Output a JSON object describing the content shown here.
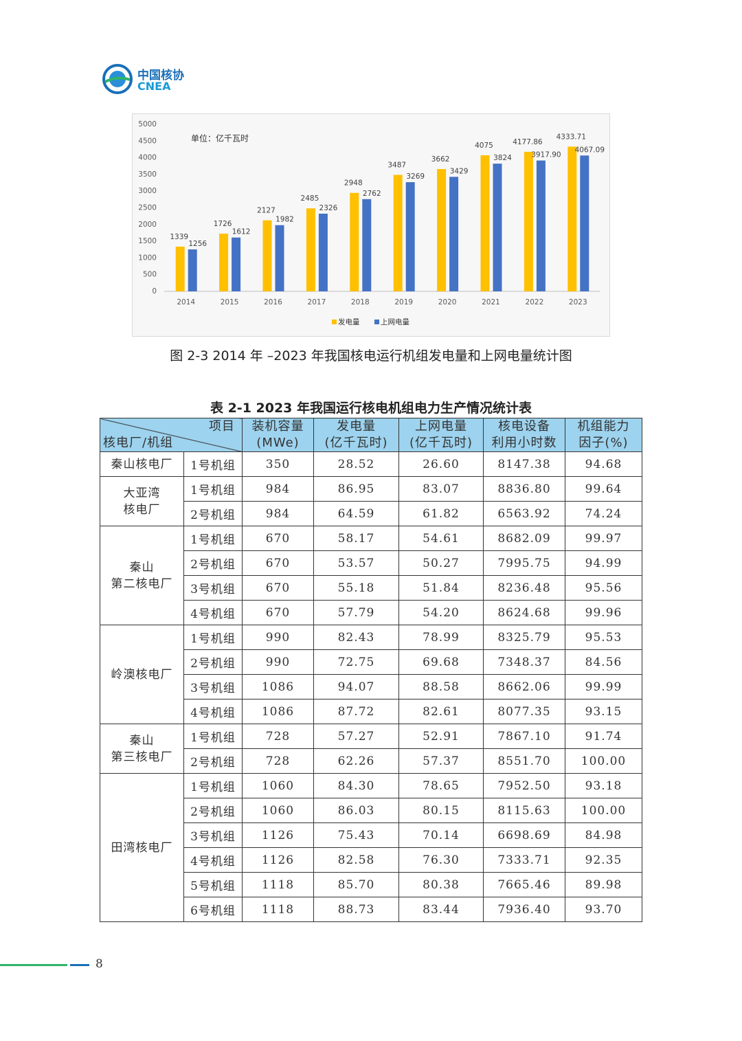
{
  "header": {
    "logo_cn": "中国核协",
    "logo_en": "CNEA"
  },
  "chart_data": {
    "type": "bar",
    "annotation": "单位：亿千瓦时",
    "categories": [
      "2014",
      "2015",
      "2016",
      "2017",
      "2018",
      "2019",
      "2020",
      "2021",
      "2022",
      "2023"
    ],
    "series": [
      {
        "name": "发电量",
        "color": "#FFC000",
        "values": [
          1339,
          1726,
          2127,
          2485,
          2948,
          3487,
          3662,
          4075,
          4177.86,
          4333.71
        ]
      },
      {
        "name": "上网电量",
        "color": "#4472C4",
        "values": [
          1256,
          1612,
          1982,
          2326,
          2762,
          3269,
          3429,
          3824,
          3917.9,
          4067.09
        ],
        "value_labels": [
          "1256",
          "1612",
          "1982",
          "2326",
          "2762",
          "3269",
          "3429",
          "3824",
          "3917.90",
          "4067.09"
        ]
      }
    ],
    "ylim": [
      0,
      5000
    ],
    "yticks": [
      0,
      500,
      1000,
      1500,
      2000,
      2500,
      3000,
      3500,
      4000,
      4500,
      5000
    ],
    "legend": "bottom"
  },
  "figure_caption": "图 2-3  2014 年 –2023 年我国核电运行机组发电量和上网电量统计图",
  "table": {
    "title": "表 2-1  2023 年我国运行核电机组电力生产情况统计表",
    "corner": {
      "top": "项目",
      "bottom": "核电厂/机组"
    },
    "columns": [
      [
        "装机容量",
        "(MWe)"
      ],
      [
        "发电量",
        "(亿千瓦时)"
      ],
      [
        "上网电量",
        "(亿千瓦时)"
      ],
      [
        "核电设备",
        "利用小时数"
      ],
      [
        "机组能力",
        "因子(%)"
      ]
    ],
    "groups": [
      {
        "plant": [
          "秦山核电厂"
        ],
        "units": [
          [
            "1号机组",
            "350",
            "28.52",
            "26.60",
            "8147.38",
            "94.68"
          ]
        ]
      },
      {
        "plant": [
          "大亚湾",
          "核电厂"
        ],
        "units": [
          [
            "1号机组",
            "984",
            "86.95",
            "83.07",
            "8836.80",
            "99.64"
          ],
          [
            "2号机组",
            "984",
            "64.59",
            "61.82",
            "6563.92",
            "74.24"
          ]
        ]
      },
      {
        "plant": [
          "秦山",
          "第二核电厂"
        ],
        "units": [
          [
            "1号机组",
            "670",
            "58.17",
            "54.61",
            "8682.09",
            "99.97"
          ],
          [
            "2号机组",
            "670",
            "53.57",
            "50.27",
            "7995.75",
            "94.99"
          ],
          [
            "3号机组",
            "670",
            "55.18",
            "51.84",
            "8236.48",
            "95.56"
          ],
          [
            "4号机组",
            "670",
            "57.79",
            "54.20",
            "8624.68",
            "99.96"
          ]
        ]
      },
      {
        "plant": [
          "岭澳核电厂"
        ],
        "units": [
          [
            "1号机组",
            "990",
            "82.43",
            "78.99",
            "8325.79",
            "95.53"
          ],
          [
            "2号机组",
            "990",
            "72.75",
            "69.68",
            "7348.37",
            "84.56"
          ],
          [
            "3号机组",
            "1086",
            "94.07",
            "88.58",
            "8662.06",
            "99.99"
          ],
          [
            "4号机组",
            "1086",
            "87.72",
            "82.61",
            "8077.35",
            "93.15"
          ]
        ]
      },
      {
        "plant": [
          "秦山",
          "第三核电厂"
        ],
        "units": [
          [
            "1号机组",
            "728",
            "57.27",
            "52.91",
            "7867.10",
            "91.74"
          ],
          [
            "2号机组",
            "728",
            "62.26",
            "57.37",
            "8551.70",
            "100.00"
          ]
        ]
      },
      {
        "plant": [
          "田湾核电厂"
        ],
        "units": [
          [
            "1号机组",
            "1060",
            "84.30",
            "78.65",
            "7952.50",
            "93.18"
          ],
          [
            "2号机组",
            "1060",
            "86.03",
            "80.15",
            "8115.63",
            "100.00"
          ],
          [
            "3号机组",
            "1126",
            "75.43",
            "70.14",
            "6698.69",
            "84.98"
          ],
          [
            "4号机组",
            "1126",
            "82.58",
            "76.30",
            "7333.71",
            "92.35"
          ],
          [
            "5号机组",
            "1118",
            "85.70",
            "80.38",
            "7665.46",
            "89.98"
          ],
          [
            "6号机组",
            "1118",
            "88.73",
            "83.44",
            "7936.40",
            "93.70"
          ]
        ]
      }
    ]
  },
  "footer": {
    "page": "8"
  }
}
